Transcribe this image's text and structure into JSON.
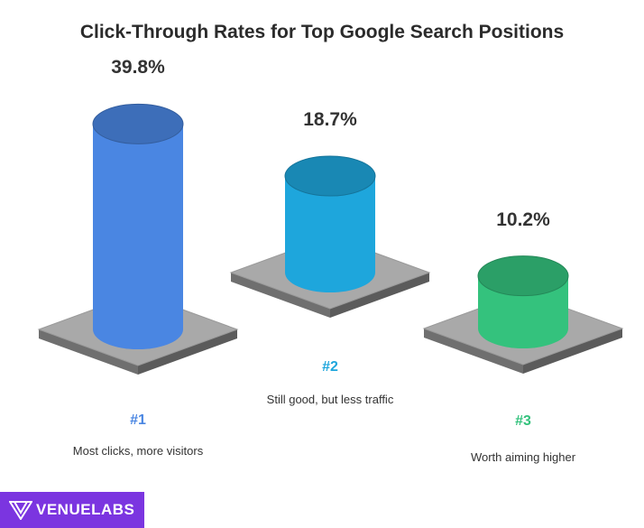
{
  "title": "Click-Through Rates for Top Google Search Positions",
  "chart_data": {
    "type": "bar",
    "title": "Click-Through Rates for Top Google Search Positions",
    "categories": [
      "#1",
      "#2",
      "#3"
    ],
    "values": [
      39.8,
      18.7,
      10.2
    ],
    "value_labels": [
      "39.8%",
      "18.7%",
      "10.2%"
    ],
    "descriptions": [
      "Most clicks, more visitors",
      "Still good, but less traffic",
      "Worth aiming higher"
    ],
    "colors": [
      "#4a86e2",
      "#1ea6dc",
      "#34c27d"
    ],
    "xlabel": "",
    "ylabel": "",
    "grid": false
  },
  "logo": {
    "text": "VENUELABS",
    "color": "#7b35e0"
  }
}
